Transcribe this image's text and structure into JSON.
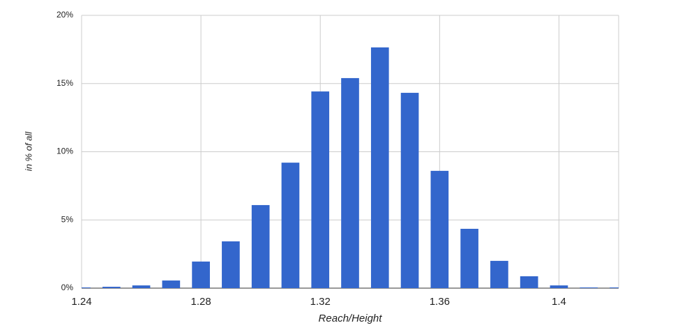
{
  "chart_data": {
    "type": "bar",
    "x": [
      1.24,
      1.25,
      1.26,
      1.27,
      1.28,
      1.29,
      1.3,
      1.31,
      1.32,
      1.33,
      1.34,
      1.35,
      1.36,
      1.37,
      1.38,
      1.39,
      1.4,
      1.41,
      1.42
    ],
    "values": [
      0.05,
      0.1,
      0.2,
      0.56,
      1.95,
      3.43,
      6.09,
      9.2,
      14.42,
      15.4,
      17.65,
      14.32,
      8.6,
      4.35,
      2.0,
      0.87,
      0.2,
      0.05,
      0.05
    ],
    "color": "#3366cc",
    "xlim": [
      1.24,
      1.42
    ],
    "xticks": [
      1.24,
      1.28,
      1.32,
      1.36,
      1.4
    ],
    "ylim": [
      0,
      20
    ],
    "yticks": [
      {
        "value": 0,
        "label": "0%"
      },
      {
        "value": 5,
        "label": "5%"
      },
      {
        "value": 10,
        "label": "10%"
      },
      {
        "value": 15,
        "label": "15%"
      },
      {
        "value": 20,
        "label": "20%"
      }
    ],
    "xlabel": "Reach/Height",
    "ylabel": "in % of all",
    "grid": true
  }
}
